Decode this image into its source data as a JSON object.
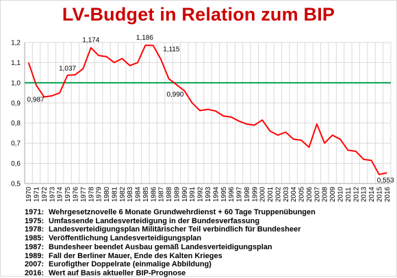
{
  "title": "LV-Budget in Relation zum BIP",
  "colors": {
    "line": "#ff0000",
    "reference": "#00a050",
    "grid": "#d9d9d9",
    "title": "#cc0000"
  },
  "chart_data": {
    "type": "line",
    "title": "LV-Budget in Relation zum BIP",
    "xlabel": "",
    "ylabel": "",
    "ylim": [
      0.5,
      1.2
    ],
    "yticks": [
      "0,5",
      "0,6",
      "0,7",
      "0,8",
      "0,9",
      "1,0",
      "1,1",
      "1,2"
    ],
    "grid": true,
    "x": [
      "1970",
      "1971",
      "1972",
      "1973",
      "1974",
      "1975",
      "1976",
      "1977",
      "1978",
      "1979",
      "1980",
      "1981",
      "1982",
      "1983",
      "1984",
      "1985",
      "1986",
      "1987",
      "1988",
      "1989",
      "1990",
      "1991",
      "1992",
      "1993",
      "1994",
      "1995",
      "1996",
      "1997",
      "1998",
      "1999",
      "2000",
      "2001",
      "2002",
      "2003",
      "2004",
      "2005",
      "2006",
      "2007",
      "2008",
      "2009",
      "2010",
      "2011",
      "2012",
      "2013",
      "2014",
      "2015",
      "2016"
    ],
    "series": [
      {
        "values": [
          1.1,
          0.987,
          0.93,
          0.935,
          0.95,
          1.037,
          1.04,
          1.07,
          1.174,
          1.135,
          1.13,
          1.1,
          1.12,
          1.085,
          1.1,
          1.186,
          1.185,
          1.115,
          1.02,
          0.99,
          0.96,
          0.9,
          0.862,
          0.868,
          0.86,
          0.835,
          0.83,
          0.81,
          0.795,
          0.79,
          0.815,
          0.76,
          0.74,
          0.755,
          0.72,
          0.715,
          0.68,
          0.795,
          0.7,
          0.74,
          0.72,
          0.665,
          0.66,
          0.62,
          0.615,
          0.545,
          0.553
        ]
      }
    ],
    "reference_line": 1.0,
    "data_labels": [
      {
        "x": "1971",
        "text": "0,987"
      },
      {
        "x": "1975",
        "text": "1,037"
      },
      {
        "x": "1978",
        "text": "1,174"
      },
      {
        "x": "1985",
        "text": "1,186"
      },
      {
        "x": "1987",
        "text": "1,115"
      },
      {
        "x": "1989",
        "text": "0,990"
      },
      {
        "x": "2016",
        "text": "0,553"
      }
    ]
  },
  "notes": [
    {
      "year": "1971:",
      "text": "Wehrgesetznovelle 6 Monate Grundwehrdienst + 60 Tage Truppenübungen"
    },
    {
      "year": "1975:",
      "text": "Umfassende Landesverteidigung in der Bundesverfassung"
    },
    {
      "year": "1978:",
      "text": "Landesverteidigungsplan Militärischer Teil verbindlich für Bundesheer"
    },
    {
      "year": "1985:",
      "text": "Veröffentlichung Landesverteidigungsplan"
    },
    {
      "year": "1987:",
      "text": "Bundesheer beendet Ausbau gemäß Landesverteidigungsplan"
    },
    {
      "year": "1989:",
      "text": "Fall der Berliner Mauer, Ende des Kalten Krieges"
    },
    {
      "year": "2007:",
      "text": "Eurofigther Doppelrate (einmalige Abbildung)"
    },
    {
      "year": "2016:",
      "text": "Wert auf Basis aktueller BIP-Prognose"
    }
  ]
}
